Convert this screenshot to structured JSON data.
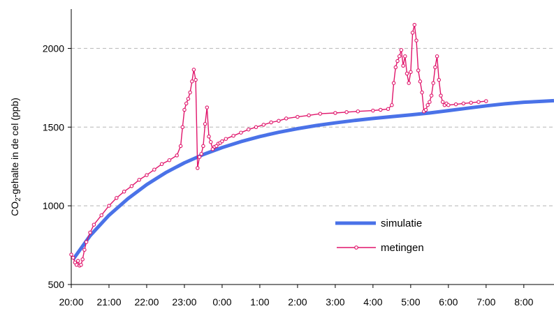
{
  "chart_data": {
    "type": "line",
    "title": "",
    "xlabel": "",
    "ylabel": {
      "prefix": "CO",
      "subscript": "2",
      "suffix": "-gehalte in de cel (ppb)"
    },
    "xlim": [
      0,
      12.8
    ],
    "ylim": [
      500,
      2250
    ],
    "x_ticks": [
      {
        "v": 0,
        "label": "20:00"
      },
      {
        "v": 1,
        "label": "21:00"
      },
      {
        "v": 2,
        "label": "22:00"
      },
      {
        "v": 3,
        "label": "23:00"
      },
      {
        "v": 4,
        "label": "0:00"
      },
      {
        "v": 5,
        "label": "1:00"
      },
      {
        "v": 6,
        "label": "2:00"
      },
      {
        "v": 7,
        "label": "3:00"
      },
      {
        "v": 8,
        "label": "4:00"
      },
      {
        "v": 9,
        "label": "5:00"
      },
      {
        "v": 10,
        "label": "6:00"
      },
      {
        "v": 11,
        "label": "7:00"
      },
      {
        "v": 12,
        "label": "8:00"
      }
    ],
    "y_ticks": [
      500,
      1000,
      1500,
      2000
    ],
    "gridlines": [
      1000,
      1500,
      2000
    ],
    "legend_position": "bottom-right",
    "series": [
      {
        "name": "simulatie",
        "color": "#4a72e8",
        "marker": "none",
        "x": [
          0.05,
          0.5,
          1.0,
          1.5,
          2.0,
          2.5,
          3.0,
          3.5,
          4.0,
          4.5,
          5.0,
          5.5,
          6.0,
          6.5,
          7.0,
          7.5,
          8.0,
          8.5,
          9.0,
          9.5,
          10.0,
          10.5,
          11.0,
          11.5,
          12.0,
          12.5,
          12.8
        ],
        "y": [
          660,
          810,
          940,
          1045,
          1135,
          1210,
          1273,
          1326,
          1370,
          1408,
          1440,
          1467,
          1490,
          1510,
          1527,
          1542,
          1555,
          1567,
          1578,
          1590,
          1605,
          1620,
          1635,
          1648,
          1658,
          1664,
          1668
        ]
      },
      {
        "name": "metingen",
        "color": "#e0156b",
        "marker": "circle",
        "x": [
          0.0,
          0.05,
          0.1,
          0.14,
          0.18,
          0.22,
          0.26,
          0.3,
          0.35,
          0.4,
          0.5,
          0.6,
          0.8,
          1.0,
          1.2,
          1.4,
          1.6,
          1.8,
          2.0,
          2.2,
          2.4,
          2.6,
          2.8,
          2.9,
          2.95,
          3.0,
          3.05,
          3.1,
          3.15,
          3.2,
          3.25,
          3.3,
          3.35,
          3.4,
          3.45,
          3.5,
          3.55,
          3.6,
          3.65,
          3.7,
          3.75,
          3.8,
          3.85,
          3.9,
          3.95,
          4.0,
          4.1,
          4.3,
          4.5,
          4.7,
          4.9,
          5.1,
          5.3,
          5.5,
          5.7,
          6.0,
          6.3,
          6.6,
          7.0,
          7.3,
          7.6,
          8.0,
          8.2,
          8.4,
          8.5,
          8.55,
          8.6,
          8.65,
          8.7,
          8.75,
          8.8,
          8.85,
          8.9,
          8.95,
          9.0,
          9.05,
          9.1,
          9.15,
          9.2,
          9.25,
          9.3,
          9.35,
          9.4,
          9.45,
          9.5,
          9.55,
          9.6,
          9.65,
          9.7,
          9.75,
          9.8,
          9.85,
          9.9,
          9.95,
          10.0,
          10.2,
          10.4,
          10.6,
          10.8,
          11.0
        ],
        "y": [
          690,
          670,
          640,
          625,
          650,
          620,
          625,
          660,
          720,
          770,
          830,
          880,
          940,
          1000,
          1050,
          1090,
          1125,
          1165,
          1195,
          1230,
          1265,
          1290,
          1320,
          1380,
          1500,
          1610,
          1650,
          1680,
          1720,
          1790,
          1865,
          1800,
          1240,
          1310,
          1330,
          1380,
          1520,
          1625,
          1440,
          1405,
          1360,
          1375,
          1380,
          1395,
          1400,
          1410,
          1425,
          1445,
          1465,
          1485,
          1500,
          1515,
          1530,
          1540,
          1555,
          1565,
          1575,
          1585,
          1590,
          1595,
          1600,
          1605,
          1610,
          1615,
          1640,
          1780,
          1880,
          1920,
          1950,
          1990,
          1890,
          1950,
          1840,
          1780,
          1850,
          2100,
          2150,
          2050,
          1860,
          1790,
          1720,
          1600,
          1610,
          1640,
          1660,
          1700,
          1780,
          1880,
          1950,
          1800,
          1700,
          1660,
          1640,
          1650,
          1640,
          1645,
          1650,
          1655,
          1660,
          1665
        ]
      }
    ]
  }
}
